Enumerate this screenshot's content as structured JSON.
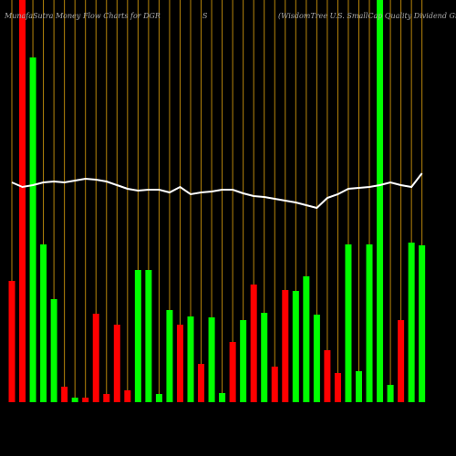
{
  "chart_data": {
    "type": "bar",
    "title": "MunafaSutra  Money Flow  Charts for DGR",
    "subtitle": "S",
    "description": "(WisdomTree   U.S. SmallCap Quality Dividend Growth",
    "categories": [
      null,
      null,
      null,
      null,
      null,
      null,
      null,
      null,
      null,
      null,
      null,
      null,
      null,
      null,
      null,
      null,
      null,
      null,
      null,
      null,
      null,
      null,
      null,
      null,
      null,
      null,
      null,
      null,
      null,
      null,
      null,
      null,
      null,
      null,
      null,
      null,
      null,
      null,
      null,
      null
    ],
    "values": [
      133,
      441,
      378,
      173,
      113,
      17,
      5,
      5,
      97,
      9,
      85,
      13,
      145,
      145,
      9,
      101,
      85,
      94,
      42,
      93,
      10,
      66,
      90,
      129,
      98,
      39,
      123,
      122,
      138,
      96,
      57,
      32,
      173,
      34,
      173,
      441,
      19,
      90,
      175,
      172
    ],
    "colors": [
      "#ff0000",
      "#ff0000",
      "#00ff00",
      "#00ff00",
      "#00ff00",
      "#ff0000",
      "#00ff00",
      "#ff0000",
      "#ff0000",
      "#ff0000",
      "#ff0000",
      "#ff0000",
      "#00ff00",
      "#00ff00",
      "#00ff00",
      "#00ff00",
      "#ff0000",
      "#00ff00",
      "#ff0000",
      "#00ff00",
      "#00ff00",
      "#ff0000",
      "#00ff00",
      "#ff0000",
      "#00ff00",
      "#ff0000",
      "#ff0000",
      "#00ff00",
      "#00ff00",
      "#00ff00",
      "#ff0000",
      "#ff0000",
      "#00ff00",
      "#00ff00",
      "#00ff00",
      "#00ff00",
      "#00ff00",
      "#ff0000",
      "#00ff00",
      "#00ff00"
    ],
    "line": {
      "color": "#ffffff",
      "values": [
        241,
        236,
        238,
        241,
        242,
        241,
        243,
        245,
        244,
        242,
        238,
        234,
        232,
        233,
        233,
        230,
        236,
        228,
        230,
        231,
        233,
        233,
        229,
        226,
        225,
        223,
        221,
        219,
        216,
        213,
        224,
        228,
        234,
        235,
        236,
        238,
        241,
        238,
        236,
        251
      ]
    },
    "gridline_color": "#b8860b",
    "ylim": [
      0,
      441
    ]
  }
}
